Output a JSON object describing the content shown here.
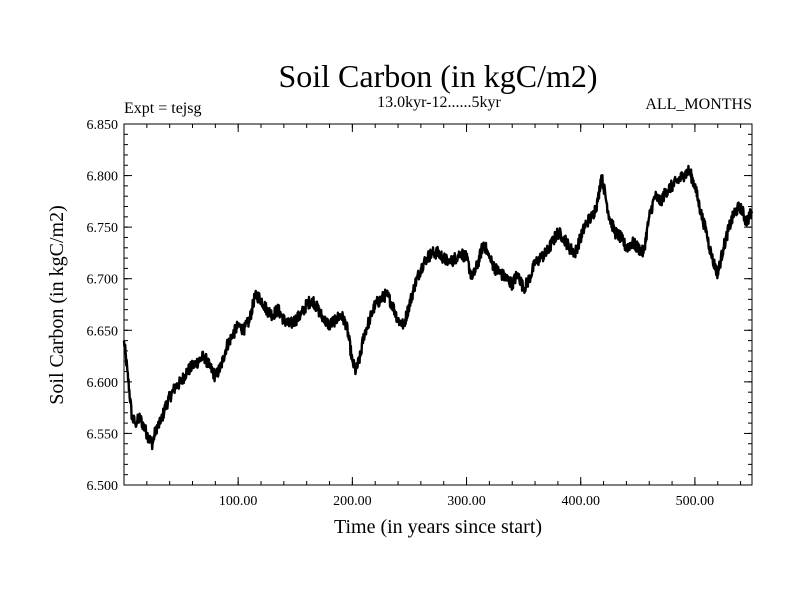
{
  "chart_data": {
    "type": "line",
    "title": "Soil Carbon (in kgC/m2)",
    "subtitle": "13.0kyr-12......5kyr",
    "left_label": "Expt = tejsg",
    "right_label": "ALL_MONTHS",
    "xlabel": "Time (in years since start)",
    "ylabel": "Soil Carbon (in kgC/m2)",
    "xlim": [
      0,
      550
    ],
    "ylim": [
      6.5,
      6.85
    ],
    "x_ticks": [
      100,
      200,
      300,
      400,
      500
    ],
    "x_tick_labels": [
      "100.00",
      "200.00",
      "300.00",
      "400.00",
      "500.00"
    ],
    "y_ticks": [
      6.5,
      6.55,
      6.6,
      6.65,
      6.7,
      6.75,
      6.8,
      6.85
    ],
    "y_tick_labels": [
      "6.500",
      "6.550",
      "6.600",
      "6.650",
      "6.700",
      "6.750",
      "6.800",
      "6.850"
    ],
    "grid": false,
    "series": [
      {
        "name": "Soil Carbon",
        "color": "#000000",
        "x": [
          0,
          3,
          7,
          10,
          14,
          18,
          22,
          25,
          28,
          32,
          36,
          40,
          45,
          50,
          55,
          60,
          65,
          70,
          75,
          80,
          85,
          90,
          95,
          100,
          105,
          110,
          115,
          120,
          125,
          130,
          135,
          140,
          145,
          150,
          155,
          160,
          165,
          170,
          175,
          180,
          185,
          190,
          195,
          200,
          203,
          207,
          210,
          215,
          220,
          225,
          230,
          235,
          240,
          245,
          250,
          255,
          260,
          265,
          270,
          275,
          280,
          285,
          290,
          295,
          300,
          305,
          310,
          315,
          320,
          325,
          330,
          335,
          340,
          345,
          350,
          355,
          360,
          365,
          370,
          375,
          380,
          385,
          390,
          395,
          400,
          405,
          410,
          415,
          418,
          420,
          425,
          430,
          435,
          440,
          445,
          450,
          455,
          460,
          465,
          470,
          475,
          480,
          485,
          490,
          495,
          500,
          505,
          510,
          515,
          520,
          525,
          530,
          535,
          540,
          545,
          550
        ],
        "y": [
          6.64,
          6.61,
          6.565,
          6.56,
          6.565,
          6.555,
          6.545,
          6.54,
          6.555,
          6.56,
          6.575,
          6.585,
          6.595,
          6.6,
          6.61,
          6.615,
          6.62,
          6.625,
          6.615,
          6.605,
          6.615,
          6.635,
          6.645,
          6.655,
          6.65,
          6.66,
          6.685,
          6.68,
          6.67,
          6.665,
          6.67,
          6.66,
          6.655,
          6.66,
          6.665,
          6.675,
          6.68,
          6.67,
          6.66,
          6.655,
          6.66,
          6.665,
          6.655,
          6.62,
          6.61,
          6.625,
          6.645,
          6.66,
          6.675,
          6.68,
          6.685,
          6.675,
          6.66,
          6.655,
          6.675,
          6.695,
          6.71,
          6.72,
          6.725,
          6.725,
          6.72,
          6.715,
          6.72,
          6.725,
          6.72,
          6.7,
          6.715,
          6.735,
          6.72,
          6.71,
          6.705,
          6.7,
          6.695,
          6.705,
          6.69,
          6.7,
          6.715,
          6.72,
          6.725,
          6.735,
          6.745,
          6.74,
          6.73,
          6.725,
          6.74,
          6.755,
          6.76,
          6.775,
          6.8,
          6.79,
          6.76,
          6.745,
          6.74,
          6.73,
          6.735,
          6.73,
          6.725,
          6.76,
          6.78,
          6.775,
          6.785,
          6.79,
          6.795,
          6.8,
          6.805,
          6.79,
          6.765,
          6.745,
          6.72,
          6.705,
          6.73,
          6.75,
          6.765,
          6.77,
          6.755,
          6.765
        ]
      }
    ]
  }
}
